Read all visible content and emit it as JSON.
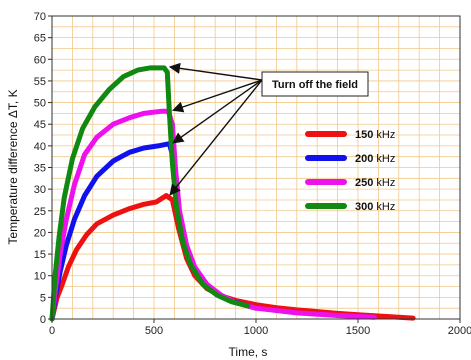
{
  "chart_data": {
    "type": "line",
    "title": "",
    "xlabel": "Time, s",
    "ylabel": "Temperature difference ΔT, K",
    "xlim": [
      0,
      2000
    ],
    "ylim": [
      0,
      70
    ],
    "x_ticks": [
      0,
      500,
      1000,
      1500,
      2000
    ],
    "y_ticks": [
      0,
      5,
      10,
      15,
      20,
      25,
      30,
      35,
      40,
      45,
      50,
      55,
      60,
      65,
      70
    ],
    "grid": true,
    "grid_color": "#f2c88a",
    "legend_position": "right",
    "annotation": "Turn off the field",
    "series": [
      {
        "name": "150 kHz",
        "color": "#ee1111",
        "points": [
          [
            0,
            0
          ],
          [
            25,
            5
          ],
          [
            50,
            8
          ],
          [
            80,
            12
          ],
          [
            120,
            16
          ],
          [
            170,
            19.5
          ],
          [
            220,
            22
          ],
          [
            300,
            24
          ],
          [
            380,
            25.5
          ],
          [
            450,
            26.5
          ],
          [
            510,
            27
          ],
          [
            560,
            28.5
          ],
          [
            590,
            27.5
          ],
          [
            620,
            21
          ],
          [
            660,
            14
          ],
          [
            700,
            10
          ],
          [
            760,
            7
          ],
          [
            820,
            5.5
          ],
          [
            900,
            4.3
          ],
          [
            1000,
            3.3
          ],
          [
            1100,
            2.6
          ],
          [
            1200,
            2.1
          ],
          [
            1300,
            1.7
          ],
          [
            1400,
            1.3
          ],
          [
            1500,
            1
          ],
          [
            1600,
            0.7
          ],
          [
            1700,
            0.4
          ],
          [
            1770,
            0.2
          ]
        ]
      },
      {
        "name": "200 kHz",
        "color": "#1111ee",
        "points": [
          [
            0,
            0
          ],
          [
            20,
            6
          ],
          [
            40,
            11
          ],
          [
            70,
            17
          ],
          [
            110,
            23
          ],
          [
            160,
            28.5
          ],
          [
            220,
            33
          ],
          [
            300,
            36.5
          ],
          [
            380,
            38.5
          ],
          [
            450,
            39.5
          ],
          [
            520,
            40
          ],
          [
            575,
            40.5
          ],
          [
            590,
            38
          ],
          [
            610,
            28
          ],
          [
            640,
            19
          ],
          [
            680,
            13
          ],
          [
            740,
            8.5
          ],
          [
            800,
            6
          ],
          [
            880,
            4.2
          ],
          [
            960,
            3
          ],
          [
            1000,
            2.5
          ]
        ]
      },
      {
        "name": "250 kHz",
        "color": "#ee11ee",
        "points": [
          [
            0,
            0
          ],
          [
            20,
            8
          ],
          [
            40,
            15
          ],
          [
            70,
            23
          ],
          [
            110,
            31
          ],
          [
            160,
            38
          ],
          [
            220,
            42
          ],
          [
            300,
            45
          ],
          [
            380,
            46.5
          ],
          [
            450,
            47.5
          ],
          [
            540,
            48
          ],
          [
            570,
            48
          ],
          [
            590,
            45
          ],
          [
            605,
            35
          ],
          [
            625,
            25
          ],
          [
            660,
            17
          ],
          [
            700,
            12
          ],
          [
            760,
            8
          ],
          [
            830,
            5.5
          ],
          [
            900,
            3.8
          ],
          [
            1000,
            2.5
          ],
          [
            1200,
            1.4
          ],
          [
            1400,
            0.8
          ],
          [
            1580,
            0.4
          ]
        ]
      },
      {
        "name": "300 kHz",
        "color": "#118811",
        "points": [
          [
            0,
            0
          ],
          [
            15,
            10
          ],
          [
            35,
            19
          ],
          [
            60,
            28
          ],
          [
            100,
            37
          ],
          [
            150,
            44
          ],
          [
            210,
            49
          ],
          [
            280,
            53
          ],
          [
            350,
            56
          ],
          [
            420,
            57.5
          ],
          [
            480,
            58
          ],
          [
            550,
            58
          ],
          [
            565,
            57
          ],
          [
            575,
            48
          ],
          [
            590,
            36
          ],
          [
            610,
            26
          ],
          [
            640,
            18
          ],
          [
            680,
            12.5
          ],
          [
            740,
            8
          ],
          [
            810,
            5.5
          ],
          [
            880,
            4
          ],
          [
            960,
            3
          ]
        ]
      }
    ]
  }
}
